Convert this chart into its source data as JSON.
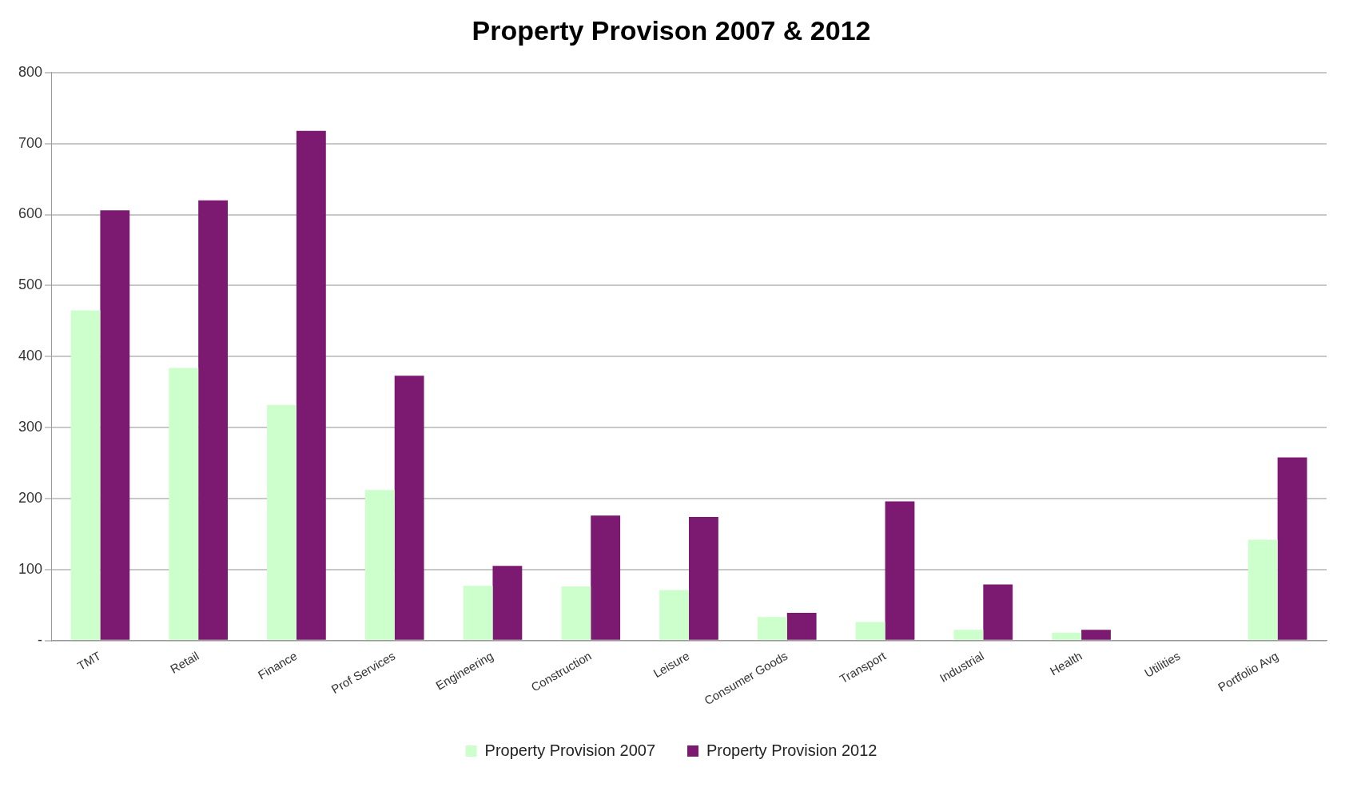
{
  "chart_data": {
    "type": "bar",
    "title": "Property Provison 2007 & 2012",
    "categories": [
      "TMT",
      "Retail",
      "Finance",
      "Prof Services",
      "Engineering",
      "Construction",
      "Leisure",
      "Consumer Goods",
      "Transport",
      "Industrial",
      "Health",
      "Utilities",
      "Portfolio Avg"
    ],
    "series": [
      {
        "name": "Property Provision 2007",
        "color": "#ccffcc",
        "values": [
          465,
          384,
          332,
          212,
          77,
          76,
          71,
          33,
          26,
          15,
          11,
          0,
          142
        ]
      },
      {
        "name": "Property Provision 2012",
        "color": "#7b1a70",
        "values": [
          606,
          620,
          718,
          373,
          105,
          176,
          174,
          39,
          196,
          79,
          15,
          0,
          258
        ]
      }
    ],
    "ylim": [
      0,
      800
    ],
    "yticks": [
      {
        "value": 0,
        "label": "-"
      },
      100,
      200,
      300,
      400,
      500,
      600,
      700,
      800
    ],
    "grid": "y",
    "legend": "bottom"
  }
}
